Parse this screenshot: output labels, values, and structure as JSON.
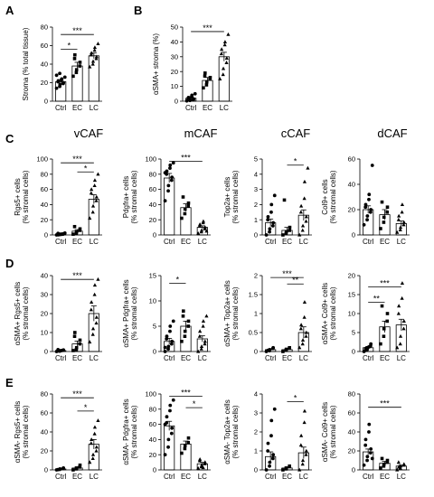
{
  "column_titles": [
    "vCAF",
    "mCAF",
    "cCAF",
    "dCAF"
  ],
  "chart_data": [
    {
      "id": "A",
      "type": "bar",
      "panel": "A",
      "categories": [
        "Ctrl",
        "EC",
        "LC"
      ],
      "ylabel": [
        "Stroma (% total tissue)"
      ],
      "ylim": [
        0,
        80
      ],
      "yticks": [
        0,
        20,
        40,
        60,
        80
      ],
      "bars": [
        21,
        38,
        49
      ],
      "err": [
        2,
        4,
        3
      ],
      "markers": [
        "circle",
        "square",
        "triangle"
      ],
      "filled": true,
      "points": [
        [
          14,
          16,
          18,
          19,
          20,
          21,
          22,
          23,
          24,
          26,
          28,
          30
        ],
        [
          27,
          31,
          34,
          38,
          42,
          46,
          50
        ],
        [
          37,
          40,
          43,
          46,
          48,
          50,
          52,
          55,
          58,
          62
        ]
      ],
      "sig": [
        {
          "from": 0,
          "to": 1,
          "label": "*",
          "y": 56
        },
        {
          "from": 0,
          "to": 2,
          "label": "***",
          "y": 72
        }
      ]
    },
    {
      "id": "B",
      "type": "bar",
      "panel": "B",
      "categories": [
        "Ctrl",
        "EC",
        "LC"
      ],
      "ylabel": [
        "αSMA+ stroma (%)"
      ],
      "ylim": [
        0,
        50
      ],
      "yticks": [
        0,
        10,
        20,
        30,
        40,
        50
      ],
      "bars": [
        2,
        14,
        30
      ],
      "err": [
        0.8,
        2,
        3
      ],
      "markers": [
        "circle",
        "square",
        "triangle"
      ],
      "filled": true,
      "points": [
        [
          0.2,
          0.5,
          0.8,
          1,
          1.5,
          2,
          2.5,
          3,
          4,
          5
        ],
        [
          9,
          11,
          13,
          15,
          16,
          17,
          19
        ],
        [
          15,
          18,
          22,
          26,
          29,
          32,
          35,
          38,
          40,
          45
        ]
      ],
      "sig": [
        {
          "from": 0,
          "to": 2,
          "label": "***",
          "y": 47
        }
      ]
    },
    {
      "id": "C1",
      "type": "bar",
      "panel": "C",
      "categories": [
        "Ctrl",
        "EC",
        "LC"
      ],
      "ylabel": [
        "Rgs5+ cells",
        "(% stromal cells)"
      ],
      "ylim": [
        0,
        100
      ],
      "yticks": [
        0,
        20,
        40,
        60,
        80,
        100
      ],
      "bars": [
        1,
        5,
        47
      ],
      "err": [
        0.5,
        2,
        6
      ],
      "markers": [
        "circle",
        "square",
        "triangle"
      ],
      "filled": true,
      "points": [
        [
          0,
          0.5,
          1,
          1,
          1.5,
          2,
          0.2,
          0.8,
          1.2,
          2.5
        ],
        [
          1,
          2,
          4,
          6,
          8,
          11
        ],
        [
          22,
          30,
          38,
          45,
          50,
          55,
          60,
          65,
          72,
          80
        ]
      ],
      "sig": [
        {
          "from": 1,
          "to": 2,
          "label": "*",
          "y": 83
        },
        {
          "from": 0,
          "to": 2,
          "label": "***",
          "y": 95
        }
      ]
    },
    {
      "id": "C2",
      "type": "bar",
      "panel": "",
      "categories": [
        "Ctrl",
        "EC",
        "LC"
      ],
      "ylabel": [
        "Pdgfra+ cells",
        "(% stromal cells)"
      ],
      "ylim": [
        0,
        100
      ],
      "yticks": [
        0,
        20,
        40,
        60,
        80,
        100
      ],
      "bars": [
        75,
        36,
        10
      ],
      "err": [
        6,
        5,
        2
      ],
      "markers": [
        "circle",
        "square",
        "triangle"
      ],
      "filled": true,
      "points": [
        [
          45,
          58,
          65,
          72,
          76,
          80,
          84,
          88,
          92,
          95,
          82
        ],
        [
          22,
          28,
          34,
          38,
          42,
          50
        ],
        [
          2,
          4,
          6,
          8,
          10,
          12,
          14,
          16,
          18,
          5
        ]
      ],
      "sig": [
        {
          "from": 0,
          "to": 2,
          "label": "***",
          "y": 97
        }
      ]
    },
    {
      "id": "C3",
      "type": "bar",
      "panel": "",
      "categories": [
        "Ctrl",
        "EC",
        "LC"
      ],
      "ylabel": [
        "Top2a+ cells",
        "(% stromal cells)"
      ],
      "ylim": [
        0,
        5
      ],
      "yticks": [
        0,
        1,
        2,
        3,
        4,
        5
      ],
      "bars": [
        0.8,
        0.3,
        1.3
      ],
      "err": [
        0.25,
        0.2,
        0.35
      ],
      "markers": [
        "circle",
        "square",
        "triangle"
      ],
      "filled": true,
      "points": [
        [
          0,
          0.2,
          0.4,
          0.6,
          0.8,
          1,
          1.2,
          1.5,
          2,
          2.6
        ],
        [
          0,
          0.1,
          0.2,
          0.3,
          0.5,
          2.3
        ],
        [
          0,
          0.3,
          0.6,
          0.9,
          1.2,
          1.5,
          1.9,
          2.4,
          3.5,
          4.4
        ]
      ],
      "sig": [
        {
          "from": 1,
          "to": 2,
          "label": "*",
          "y": 4.6
        }
      ]
    },
    {
      "id": "C4",
      "type": "bar",
      "panel": "",
      "categories": [
        "Ctrl",
        "EC",
        "LC"
      ],
      "ylabel": [
        "Col9+ cells",
        "(% stromal cells)"
      ],
      "ylim": [
        0,
        60
      ],
      "yticks": [
        0,
        20,
        40,
        60
      ],
      "bars": [
        20,
        16,
        9
      ],
      "err": [
        3,
        4,
        2
      ],
      "markers": [
        "circle",
        "square",
        "triangle"
      ],
      "filled": true,
      "points": [
        [
          8,
          12,
          15,
          18,
          20,
          22,
          24,
          28,
          32,
          55
        ],
        [
          5,
          10,
          14,
          18,
          22,
          26
        ],
        [
          2,
          4,
          6,
          8,
          10,
          12,
          15,
          18,
          24
        ]
      ],
      "sig": []
    },
    {
      "id": "D1",
      "type": "bar",
      "panel": "D",
      "categories": [
        "Ctrl",
        "EC",
        "LC"
      ],
      "ylabel": [
        "αSMA+ Rgs5+ cells",
        "(% stromal cells)"
      ],
      "ylim": [
        0,
        40
      ],
      "yticks": [
        0,
        10,
        20,
        30,
        40
      ],
      "bars": [
        0.5,
        4,
        20
      ],
      "err": [
        0.2,
        1.5,
        4
      ],
      "markers": [
        "circle",
        "square",
        "triangle"
      ],
      "filled": true,
      "points": [
        [
          0,
          0.2,
          0.4,
          0.6,
          0.8,
          1,
          0.3,
          0.5
        ],
        [
          0.5,
          1,
          2,
          4,
          6,
          8,
          10
        ],
        [
          5,
          9,
          12,
          15,
          18,
          22,
          26,
          30,
          35,
          38
        ]
      ],
      "sig": [
        {
          "from": 0,
          "to": 2,
          "label": "***",
          "y": 38
        }
      ]
    },
    {
      "id": "D2",
      "type": "bar",
      "panel": "",
      "categories": [
        "Ctrl",
        "EC",
        "LC"
      ],
      "ylabel": [
        "αSMA+ Pdgfra+ cells",
        "(% stromal cells)"
      ],
      "ylim": [
        0,
        15
      ],
      "yticks": [
        0,
        5,
        10,
        15
      ],
      "bars": [
        2,
        5,
        2.5
      ],
      "err": [
        0.6,
        1,
        0.6
      ],
      "markers": [
        "circle",
        "square",
        "triangle"
      ],
      "filled": false,
      "points": [
        [
          0,
          0.5,
          1,
          1.5,
          2,
          2.5,
          3,
          4,
          5,
          6,
          0.8
        ],
        [
          2,
          3,
          4,
          5,
          6,
          7,
          8
        ],
        [
          0,
          0.5,
          1,
          1.5,
          2,
          3,
          4,
          5,
          6,
          7
        ]
      ],
      "sig": [
        {
          "from": 0,
          "to": 1,
          "label": "*",
          "y": 13.5
        }
      ]
    },
    {
      "id": "D3",
      "type": "bar",
      "panel": "",
      "categories": [
        "Ctrl",
        "EC",
        "LC"
      ],
      "ylabel": [
        "αSMA+ Top2a+ cells",
        "(% stromal cells)"
      ],
      "ylim": [
        0,
        2
      ],
      "yticks": [
        0,
        0.5,
        1,
        1.5,
        2
      ],
      "bars": [
        0.05,
        0.05,
        0.5
      ],
      "err": [
        0.02,
        0.02,
        0.15
      ],
      "markers": [
        "circle",
        "square",
        "triangle"
      ],
      "filled": false,
      "points": [
        [
          0,
          0.02,
          0.05,
          0.08,
          0.1,
          0.03
        ],
        [
          0,
          0.03,
          0.06,
          0.1
        ],
        [
          0.1,
          0.2,
          0.3,
          0.4,
          0.5,
          0.6,
          0.7,
          0.9,
          1.3
        ]
      ],
      "sig": [
        {
          "from": 1,
          "to": 2,
          "label": "**",
          "y": 1.78
        },
        {
          "from": 0,
          "to": 2,
          "label": "***",
          "y": 1.95
        }
      ]
    },
    {
      "id": "D4",
      "type": "bar",
      "panel": "",
      "categories": [
        "Ctrl",
        "EC",
        "LC"
      ],
      "ylabel": [
        "αSMA+ Col9+ cells",
        "(% stromal cells)"
      ],
      "ylim": [
        0,
        20
      ],
      "yticks": [
        0,
        5,
        10,
        15,
        20
      ],
      "bars": [
        1,
        6.5,
        7
      ],
      "err": [
        0.3,
        1.5,
        1.5
      ],
      "markers": [
        "circle",
        "square",
        "triangle"
      ],
      "filled": false,
      "points": [
        [
          0,
          0.5,
          1,
          1.5,
          2,
          0.3,
          0.8,
          1.2
        ],
        [
          2,
          4,
          6,
          8,
          10,
          12
        ],
        [
          1,
          2,
          4,
          6,
          8,
          10,
          12,
          14,
          18
        ]
      ],
      "sig": [
        {
          "from": 0,
          "to": 1,
          "label": "**",
          "y": 13
        },
        {
          "from": 0,
          "to": 2,
          "label": "***",
          "y": 17
        }
      ]
    },
    {
      "id": "E1",
      "type": "bar",
      "panel": "E",
      "categories": [
        "Ctrl",
        "EC",
        "LC"
      ],
      "ylabel": [
        "αSMA- Rgs5+ cells",
        "(% stromal cells)"
      ],
      "ylim": [
        0,
        80
      ],
      "yticks": [
        0,
        20,
        40,
        60,
        80
      ],
      "bars": [
        1,
        2,
        27
      ],
      "err": [
        0.4,
        1,
        5
      ],
      "markers": [
        "circle",
        "square",
        "triangle"
      ],
      "filled": true,
      "points": [
        [
          0,
          0.5,
          1,
          1.5,
          2,
          0.3
        ],
        [
          0,
          1,
          2,
          3,
          5
        ],
        [
          8,
          12,
          16,
          20,
          24,
          28,
          32,
          38,
          45,
          52
        ]
      ],
      "sig": [
        {
          "from": 1,
          "to": 2,
          "label": "*",
          "y": 62
        },
        {
          "from": 0,
          "to": 2,
          "label": "***",
          "y": 76
        }
      ]
    },
    {
      "id": "E2",
      "type": "bar",
      "panel": "",
      "categories": [
        "Ctrl",
        "EC",
        "LC"
      ],
      "ylabel": [
        "αSMA- Pdgfra+ cells",
        "(% stromal cells)"
      ],
      "ylim": [
        0,
        100
      ],
      "yticks": [
        0,
        20,
        40,
        60,
        80,
        100
      ],
      "bars": [
        58,
        34,
        8
      ],
      "err": [
        6,
        4,
        2
      ],
      "markers": [
        "circle",
        "square",
        "triangle"
      ],
      "filled": true,
      "points": [
        [
          20,
          30,
          40,
          48,
          55,
          62,
          70,
          78,
          85,
          92,
          60
        ],
        [
          22,
          28,
          32,
          36,
          42
        ],
        [
          2,
          4,
          6,
          8,
          10,
          12,
          14,
          3
        ]
      ],
      "sig": [
        {
          "from": 1,
          "to": 2,
          "label": "*",
          "y": 82
        },
        {
          "from": 0,
          "to": 2,
          "label": "***",
          "y": 97
        }
      ]
    },
    {
      "id": "E3",
      "type": "bar",
      "panel": "",
      "categories": [
        "Ctrl",
        "EC",
        "LC"
      ],
      "ylabel": [
        "αSMA- Top2a+ cells",
        "(% stromal cells)"
      ],
      "ylim": [
        0,
        4
      ],
      "yticks": [
        0,
        1,
        2,
        3,
        4
      ],
      "bars": [
        0.7,
        0.1,
        0.9
      ],
      "err": [
        0.25,
        0.05,
        0.3
      ],
      "markers": [
        "circle",
        "square",
        "triangle"
      ],
      "filled": true,
      "points": [
        [
          0,
          0.2,
          0.4,
          0.6,
          0.8,
          1,
          1.4,
          1.8,
          2.6,
          3.2
        ],
        [
          0,
          0.05,
          0.1,
          0.2
        ],
        [
          0,
          0.3,
          0.5,
          0.8,
          1,
          1.3,
          1.8,
          2.5,
          3.1
        ]
      ],
      "sig": [
        {
          "from": 1,
          "to": 2,
          "label": "*",
          "y": 3.6
        }
      ]
    },
    {
      "id": "E4",
      "type": "bar",
      "panel": "",
      "categories": [
        "Ctrl",
        "EC",
        "LC"
      ],
      "ylabel": [
        "αSMA- Col9+ cells",
        "(% stromal cells)"
      ],
      "ylim": [
        0,
        80
      ],
      "yticks": [
        0,
        20,
        40,
        60,
        80
      ],
      "bars": [
        19,
        7,
        4
      ],
      "err": [
        3,
        2,
        1
      ],
      "markers": [
        "circle",
        "square",
        "triangle"
      ],
      "filled": true,
      "points": [
        [
          5,
          10,
          14,
          18,
          22,
          26,
          32,
          40,
          48,
          12
        ],
        [
          2,
          4,
          6,
          8,
          10,
          12
        ],
        [
          0,
          2,
          4,
          5,
          6,
          8,
          3
        ]
      ],
      "sig": [
        {
          "from": 0,
          "to": 2,
          "label": "***",
          "y": 66
        }
      ]
    }
  ]
}
